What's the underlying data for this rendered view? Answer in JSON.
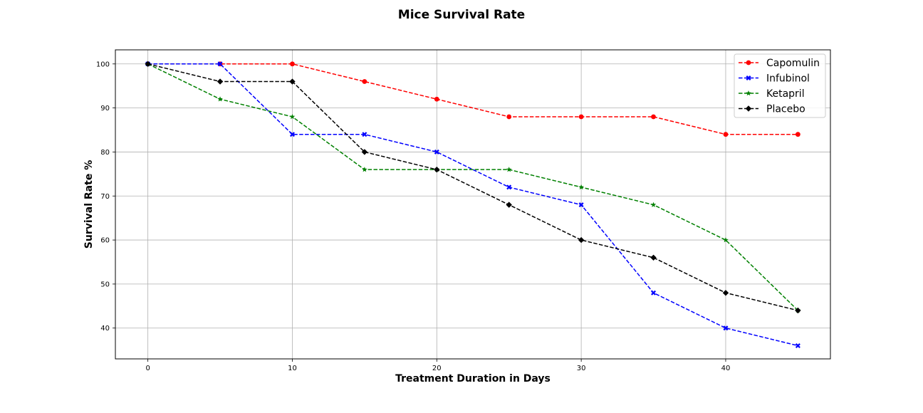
{
  "chart_data": {
    "type": "line",
    "title": "Mice Survival Rate",
    "xlabel": "Treatment Duration in Days",
    "ylabel": "Survival Rate %",
    "x": [
      0,
      5,
      10,
      15,
      20,
      25,
      30,
      35,
      40,
      45
    ],
    "xlim": [
      -2.25,
      47.25
    ],
    "ylim": [
      33,
      103.2
    ],
    "xticks": [
      0,
      10,
      20,
      30,
      40
    ],
    "yticks": [
      40,
      50,
      60,
      70,
      80,
      90,
      100
    ],
    "grid": true,
    "legend_position": "top-right",
    "series": [
      {
        "name": "Capomulin",
        "color": "#ff0000",
        "marker": "circle",
        "values": [
          100,
          100,
          100,
          96,
          92,
          88,
          88,
          88,
          84,
          84
        ]
      },
      {
        "name": "Infubinol",
        "color": "#0000ff",
        "marker": "x",
        "values": [
          100,
          100,
          84,
          84,
          80,
          72,
          68,
          48,
          40,
          36
        ]
      },
      {
        "name": "Ketapril",
        "color": "#008000",
        "marker": "star",
        "values": [
          100,
          92,
          88,
          76,
          76,
          76,
          72,
          68,
          60,
          44
        ]
      },
      {
        "name": "Placebo",
        "color": "#000000",
        "marker": "diamond",
        "values": [
          100,
          96,
          96,
          80,
          76,
          68,
          60,
          56,
          48,
          44
        ]
      }
    ]
  }
}
